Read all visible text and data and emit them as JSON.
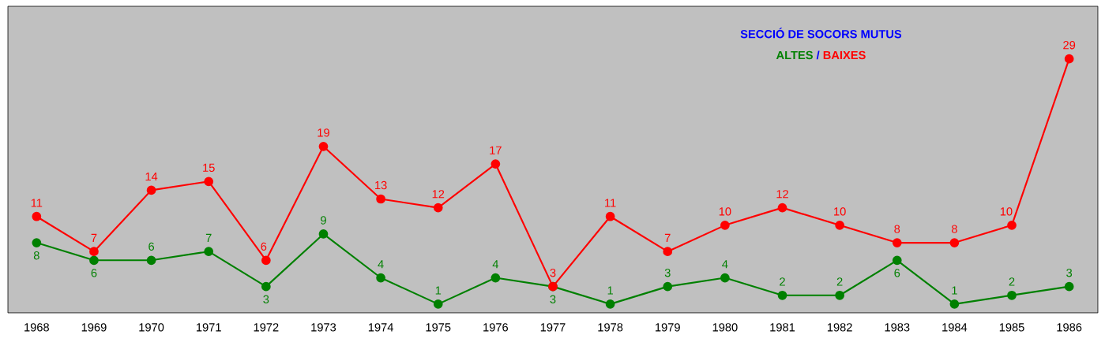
{
  "chart_data": {
    "type": "line",
    "title": "SECCIÓ DE SOCORS MUTUS",
    "categories": [
      "1968",
      "1969",
      "1970",
      "1971",
      "1972",
      "1973",
      "1974",
      "1975",
      "1976",
      "1977",
      "1978",
      "1979",
      "1980",
      "1981",
      "1982",
      "1983",
      "1984",
      "1985",
      "1986"
    ],
    "series": [
      {
        "name": "ALTES",
        "color": "#008000",
        "values": [
          8,
          6,
          6,
          7,
          3,
          9,
          4,
          1,
          4,
          3,
          1,
          3,
          4,
          2,
          2,
          6,
          1,
          2,
          3
        ]
      },
      {
        "name": "BAIXES",
        "color": "#ff0000",
        "values": [
          11,
          7,
          14,
          15,
          6,
          19,
          13,
          12,
          17,
          3,
          11,
          7,
          10,
          12,
          10,
          8,
          8,
          10,
          29
        ]
      }
    ],
    "annotations": [
      "/"
    ],
    "ylim": [
      0,
      35
    ],
    "data_labels": true,
    "marker": "circle",
    "legend": "top right"
  }
}
